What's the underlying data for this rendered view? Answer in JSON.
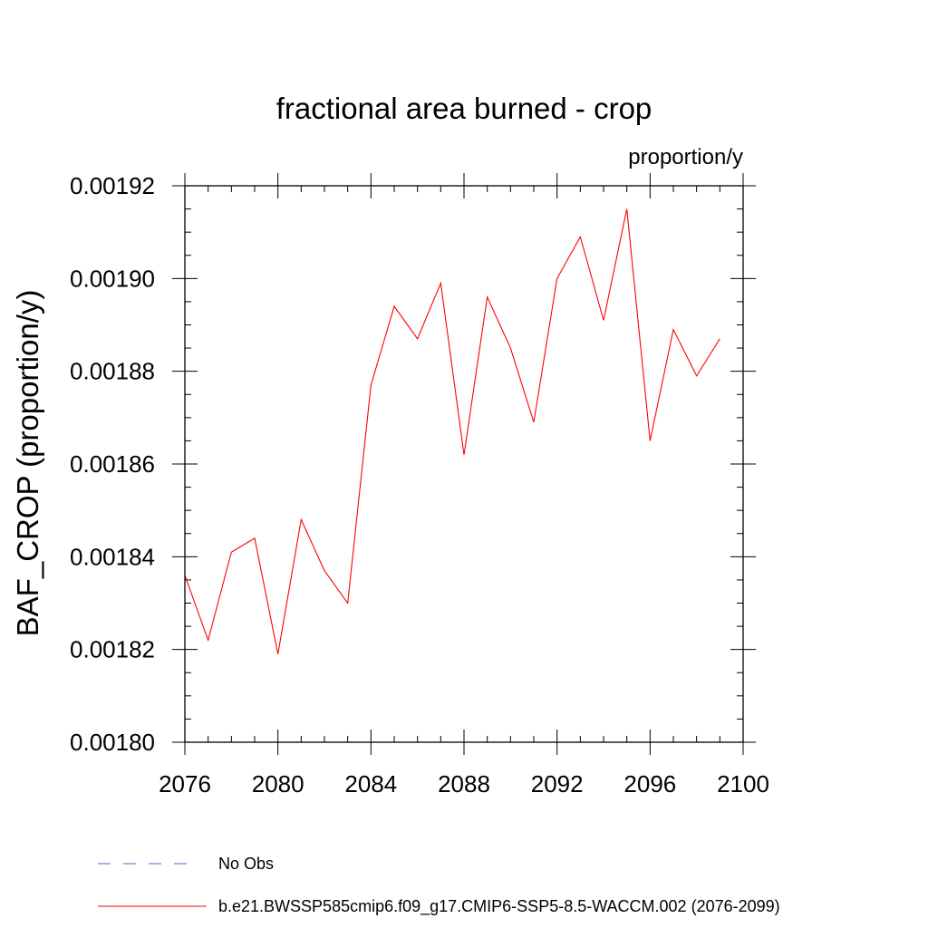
{
  "chart_data": {
    "type": "line",
    "title": "fractional area burned - crop",
    "units_label": "proportion/y",
    "ylabel": "BAF_CROP  (proportion/y)",
    "xlabel": "",
    "xlim": [
      2076,
      2100
    ],
    "ylim": [
      0.0018,
      0.00192
    ],
    "x_ticks": [
      2076,
      2080,
      2084,
      2088,
      2092,
      2096,
      2100
    ],
    "x_tick_labels": [
      "2076",
      "2080",
      "2084",
      "2088",
      "2092",
      "2096",
      "2100"
    ],
    "x_minor_step": 1,
    "y_ticks": [
      0.0018,
      0.00182,
      0.00184,
      0.00186,
      0.00188,
      0.0019,
      0.00192
    ],
    "y_tick_labels": [
      "0.00180",
      "0.00182",
      "0.00184",
      "0.00186",
      "0.00188",
      "0.00190",
      "0.00192"
    ],
    "y_minor_step": 5e-06,
    "grid": false,
    "legend_position": "bottom",
    "series": [
      {
        "name": "b.e21.BWSSP585cmip6.f09_g17.CMIP6-SSP5-8.5-WACCM.002 (2076-2099)",
        "color": "#ff0000",
        "style": "solid",
        "x": [
          2076,
          2077,
          2078,
          2079,
          2080,
          2081,
          2082,
          2083,
          2084,
          2085,
          2086,
          2087,
          2088,
          2089,
          2090,
          2091,
          2092,
          2093,
          2094,
          2095,
          2096,
          2097,
          2098,
          2099
        ],
        "values": [
          0.001836,
          0.001822,
          0.001841,
          0.001844,
          0.001819,
          0.001848,
          0.001837,
          0.00183,
          0.001877,
          0.001894,
          0.001887,
          0.001899,
          0.001862,
          0.001896,
          0.001885,
          0.001869,
          0.0019,
          0.001909,
          0.001891,
          0.001915,
          0.001865,
          0.001889,
          0.001879,
          0.001887
        ]
      }
    ],
    "legend": [
      {
        "label": "No Obs",
        "color": "#6a5acd",
        "style": "dashed"
      },
      {
        "label": "b.e21.BWSSP585cmip6.f09_g17.CMIP6-SSP5-8.5-WACCM.002 (2076-2099)",
        "color": "#ff0000",
        "style": "solid"
      }
    ]
  }
}
